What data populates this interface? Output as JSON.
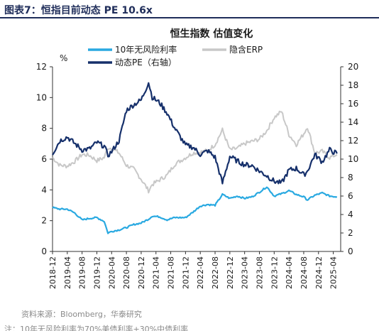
{
  "figure_label": "图表7：",
  "figure_title": "恒指目前动态 PE 10.6x",
  "source": "资料来源：Bloomberg，华泰研究",
  "note": "注：10年无风险利率为70%美债利率+30%中债利率",
  "colors": {
    "rf": "#29a9e1",
    "erp": "#c8c8c8",
    "pe": "#16306b",
    "title": "#1f2d5a"
  },
  "chart_data": {
    "type": "line",
    "title": "恒生指数 估值变化",
    "y_left": {
      "unit_label": "%",
      "ylim": [
        0,
        12
      ],
      "ticks": [
        "0",
        "2",
        "4",
        "6",
        "8",
        "10",
        "12"
      ]
    },
    "y_right": {
      "ylim": [
        0,
        20
      ],
      "ticks": [
        "0",
        "2",
        "4",
        "6",
        "8",
        "10",
        "12",
        "14",
        "16",
        "18",
        "20"
      ]
    },
    "xlim": [
      "2018-12",
      "2025-06"
    ],
    "x_ticks": [
      "2018-12",
      "2019-04",
      "2019-08",
      "2019-12",
      "2020-04",
      "2020-08",
      "2020-12",
      "2021-04",
      "2021-08",
      "2021-12",
      "2022-04",
      "2022-08",
      "2022-12",
      "2023-04",
      "2023-08",
      "2023-12",
      "2024-04",
      "2024-08",
      "2024-12",
      "2025-04"
    ],
    "legend": {
      "placement": "top",
      "items": [
        "10年无风险利率",
        "隐含ERP",
        "动态PE（右轴）"
      ]
    },
    "series": [
      {
        "name": "10年无风险利率",
        "axis": "left",
        "color": "#29a9e1",
        "points": [
          [
            "2018-12",
            2.85
          ],
          [
            "2019-02",
            2.75
          ],
          [
            "2019-04",
            2.75
          ],
          [
            "2019-06",
            2.5
          ],
          [
            "2019-08",
            2.05
          ],
          [
            "2019-10",
            2.15
          ],
          [
            "2019-12",
            2.2
          ],
          [
            "2020-02",
            1.95
          ],
          [
            "2020-03",
            1.2
          ],
          [
            "2020-04",
            1.3
          ],
          [
            "2020-06",
            1.4
          ],
          [
            "2020-08",
            1.55
          ],
          [
            "2020-10",
            1.75
          ],
          [
            "2020-12",
            1.85
          ],
          [
            "2021-02",
            2.1
          ],
          [
            "2021-03",
            2.3
          ],
          [
            "2021-05",
            2.25
          ],
          [
            "2021-07",
            2.05
          ],
          [
            "2021-09",
            2.2
          ],
          [
            "2021-12",
            2.2
          ],
          [
            "2022-02",
            2.55
          ],
          [
            "2022-04",
            2.95
          ],
          [
            "2022-06",
            3.05
          ],
          [
            "2022-08",
            3.0
          ],
          [
            "2022-10",
            3.7
          ],
          [
            "2022-12",
            3.45
          ],
          [
            "2023-02",
            3.6
          ],
          [
            "2023-04",
            3.45
          ],
          [
            "2023-06",
            3.55
          ],
          [
            "2023-08",
            3.85
          ],
          [
            "2023-10",
            4.2
          ],
          [
            "2023-12",
            3.6
          ],
          [
            "2024-02",
            3.75
          ],
          [
            "2024-04",
            3.95
          ],
          [
            "2024-06",
            3.7
          ],
          [
            "2024-08",
            3.55
          ],
          [
            "2024-09",
            3.35
          ],
          [
            "2024-11",
            3.65
          ],
          [
            "2025-01",
            3.8
          ],
          [
            "2025-03",
            3.6
          ],
          [
            "2025-05",
            3.55
          ]
        ]
      },
      {
        "name": "隐含ERP",
        "axis": "left",
        "color": "#c8c8c8",
        "points": [
          [
            "2018-12",
            6.1
          ],
          [
            "2019-02",
            5.6
          ],
          [
            "2019-04",
            5.55
          ],
          [
            "2019-06",
            5.85
          ],
          [
            "2019-08",
            6.3
          ],
          [
            "2019-10",
            6.25
          ],
          [
            "2019-12",
            5.9
          ],
          [
            "2020-02",
            6.1
          ],
          [
            "2020-03",
            6.75
          ],
          [
            "2020-04",
            6.7
          ],
          [
            "2020-06",
            6.4
          ],
          [
            "2020-08",
            5.6
          ],
          [
            "2020-10",
            5.35
          ],
          [
            "2020-12",
            4.7
          ],
          [
            "2021-02",
            3.95
          ],
          [
            "2021-03",
            4.35
          ],
          [
            "2021-05",
            4.65
          ],
          [
            "2021-07",
            4.95
          ],
          [
            "2021-09",
            5.65
          ],
          [
            "2021-12",
            6.1
          ],
          [
            "2022-02",
            6.4
          ],
          [
            "2022-04",
            6.45
          ],
          [
            "2022-06",
            6.55
          ],
          [
            "2022-08",
            6.95
          ],
          [
            "2022-10",
            7.9
          ],
          [
            "2022-12",
            6.6
          ],
          [
            "2023-02",
            6.7
          ],
          [
            "2023-04",
            7.0
          ],
          [
            "2023-06",
            7.15
          ],
          [
            "2023-08",
            7.3
          ],
          [
            "2023-10",
            7.85
          ],
          [
            "2023-12",
            8.7
          ],
          [
            "2024-02",
            9.1
          ],
          [
            "2024-04",
            7.6
          ],
          [
            "2024-06",
            6.95
          ],
          [
            "2024-08",
            7.65
          ],
          [
            "2024-09",
            8.1
          ],
          [
            "2024-11",
            6.4
          ],
          [
            "2025-01",
            6.5
          ],
          [
            "2025-03",
            6.1
          ],
          [
            "2025-05",
            6.3
          ]
        ]
      },
      {
        "name": "动态PE（右轴）",
        "axis": "right",
        "color": "#16306b",
        "points": [
          [
            "2018-12",
            10.6
          ],
          [
            "2019-02",
            12.0
          ],
          [
            "2019-04",
            12.4
          ],
          [
            "2019-06",
            11.7
          ],
          [
            "2019-08",
            11.0
          ],
          [
            "2019-10",
            11.1
          ],
          [
            "2019-12",
            11.8
          ],
          [
            "2020-02",
            11.4
          ],
          [
            "2020-03",
            10.4
          ],
          [
            "2020-04",
            10.8
          ],
          [
            "2020-06",
            12.0
          ],
          [
            "2020-08",
            15.3
          ],
          [
            "2020-10",
            15.9
          ],
          [
            "2020-12",
            16.4
          ],
          [
            "2021-02",
            18.3
          ],
          [
            "2021-03",
            16.7
          ],
          [
            "2021-05",
            16.1
          ],
          [
            "2021-07",
            15.0
          ],
          [
            "2021-09",
            13.4
          ],
          [
            "2021-12",
            11.5
          ],
          [
            "2022-02",
            11.3
          ],
          [
            "2022-04",
            10.5
          ],
          [
            "2022-06",
            10.9
          ],
          [
            "2022-08",
            10.2
          ],
          [
            "2022-10",
            7.4
          ],
          [
            "2022-12",
            10.3
          ],
          [
            "2023-02",
            9.8
          ],
          [
            "2023-04",
            9.4
          ],
          [
            "2023-06",
            9.3
          ],
          [
            "2023-08",
            8.7
          ],
          [
            "2023-10",
            8.2
          ],
          [
            "2023-12",
            7.6
          ],
          [
            "2024-02",
            7.4
          ],
          [
            "2024-04",
            8.8
          ],
          [
            "2024-06",
            9.0
          ],
          [
            "2024-08",
            8.3
          ],
          [
            "2024-09",
            8.7
          ],
          [
            "2024-11",
            10.5
          ],
          [
            "2025-01",
            9.7
          ],
          [
            "2025-03",
            11.0
          ],
          [
            "2025-05",
            10.6
          ]
        ]
      }
    ]
  }
}
